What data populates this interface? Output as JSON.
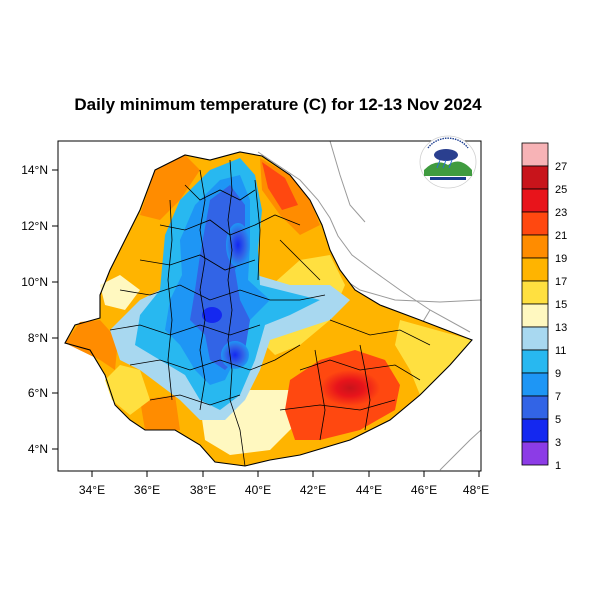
{
  "title": "Daily minimum temperature (C) for 12-13 Nov 2024",
  "x_ticks": [
    "34°E",
    "36°E",
    "38°E",
    "40°E",
    "42°E",
    "44°E",
    "46°E",
    "48°E"
  ],
  "y_ticks": [
    "14°N",
    "12°N",
    "10°N",
    "8°N",
    "6°N",
    "4°N"
  ],
  "colorbar": {
    "labels": [
      "27",
      "25",
      "23",
      "21",
      "19",
      "17",
      "15",
      "13",
      "11",
      "9",
      "7",
      "5",
      "3",
      "1"
    ],
    "colors": [
      "#f7b3b6",
      "#c8141b",
      "#e8141b",
      "#ff4810",
      "#ff8c00",
      "#ffb400",
      "#ffe040",
      "#fff8c0",
      "#a8d8f0",
      "#28b8f0",
      "#1e96f5",
      "#3264e6",
      "#1428f0",
      "#8c3ce6"
    ]
  },
  "logo": {
    "name": "Ethiopian Meteorology Institute",
    "icon": "meteorology-logo-icon"
  }
}
